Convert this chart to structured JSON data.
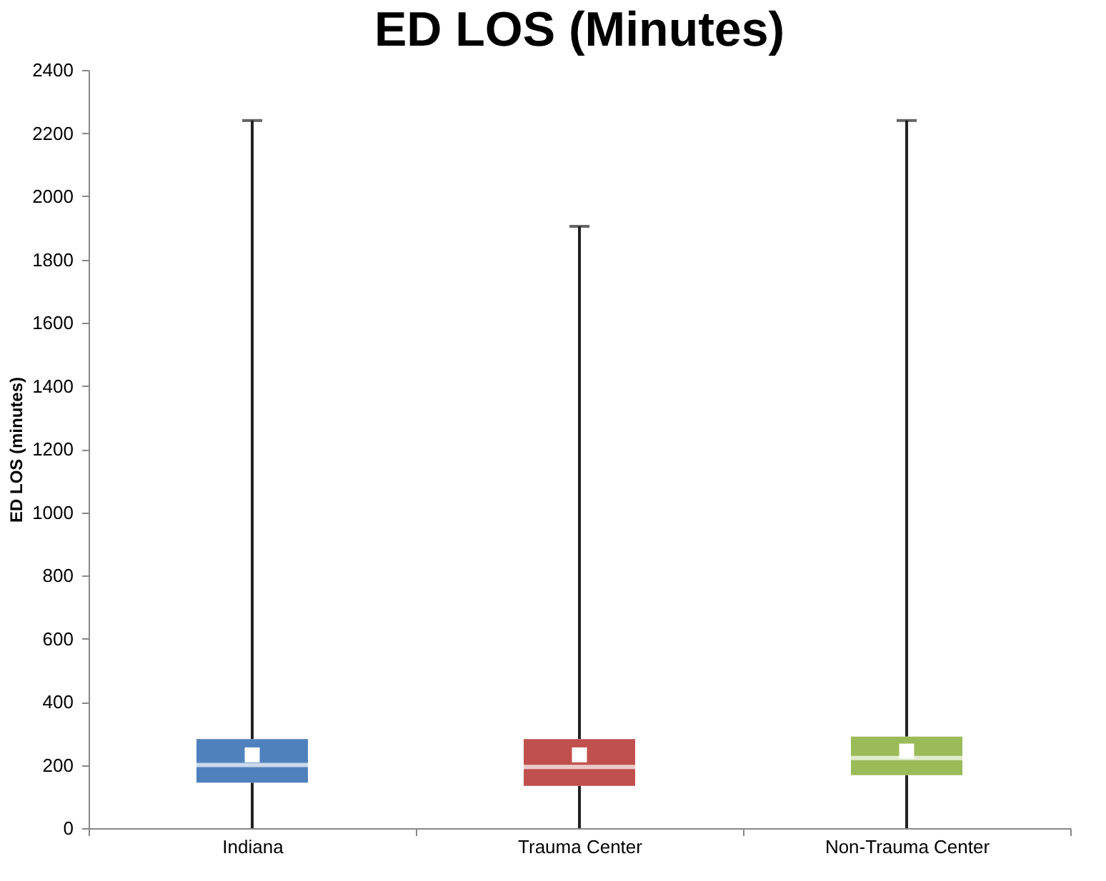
{
  "chart_data": {
    "type": "box",
    "title": "ED LOS (Minutes)",
    "ylabel": "ED LOS (minutes)",
    "categories": [
      "Indiana",
      "Trauma Center",
      "Non-Trauma Center"
    ],
    "colors": [
      "#4f81bd",
      "#c0504d",
      "#9bbb59"
    ],
    "boxes": [
      {
        "low": 0,
        "q1": 144,
        "median": 200,
        "q3": 282,
        "high": 2240,
        "mean": 232
      },
      {
        "low": 0,
        "q1": 134,
        "median": 194,
        "q3": 282,
        "high": 1905,
        "mean": 232
      },
      {
        "low": 0,
        "q1": 168,
        "median": 222,
        "q3": 290,
        "high": 2240,
        "mean": 244
      }
    ],
    "ylim": [
      0,
      2400
    ],
    "yticks": [
      0,
      200,
      400,
      600,
      800,
      1000,
      1200,
      1400,
      1600,
      1800,
      2000,
      2200,
      2400
    ],
    "grid": false
  }
}
